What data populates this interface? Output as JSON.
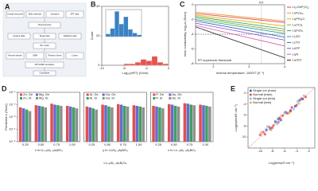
{
  "diagram": {
    "label": "A",
    "nodes": [
      "Crystal structures",
      "Bulk materials",
      "Literature",
      "DFT data",
      "Preprocessing",
      "Feature table",
      "Target data",
      "Validation data",
      "ML model",
      "Neural network",
      "GBM",
      "Random forest",
      "Linear",
      "DFT/AIMD simulation",
      "Candidates"
    ]
  },
  "chart_data": [
    {
      "type": "histogram",
      "label": "B",
      "xlabel": "Log₁₀(σRT) (S/cm)",
      "ylabel": "Count",
      "bins": [
        -12,
        -11,
        -10,
        -9,
        -8,
        -7,
        -6,
        -5,
        -4,
        -3,
        -2,
        -1,
        0
      ],
      "counts": [
        0,
        0,
        0,
        0,
        1,
        1,
        2,
        4,
        3,
        6,
        2,
        1
      ],
      "color": "#e8534f",
      "xlim": [
        -12,
        0
      ],
      "ylim": [
        0,
        40
      ],
      "xticks": [
        -12,
        -8,
        -4,
        0
      ],
      "yticks": [
        0,
        20,
        40
      ],
      "inset": {
        "bins": [
          -10,
          -9,
          -8,
          -7,
          -6,
          -5,
          -4,
          -3,
          -2
        ],
        "counts": [
          3,
          9,
          28,
          14,
          22,
          8,
          4,
          2
        ],
        "color": "#3b82c4",
        "xlim": [
          -10,
          -2
        ],
        "ylim": [
          0,
          30
        ]
      }
    },
    {
      "type": "line",
      "label": "C",
      "xlabel": "Inverse temperature, 1000/T (K⁻¹)",
      "ylabel": "Ionic conductivity, log₁₀σ (S/cm)",
      "x": [
        1.5,
        4
      ],
      "xlim": [
        1.5,
        4
      ],
      "ylim": [
        -8,
        0
      ],
      "xticks": [
        2,
        3,
        4
      ],
      "yticks": [
        -8,
        -6,
        -4,
        -2,
        0
      ],
      "hline": {
        "value": -4,
        "label": "RT superionic threshold"
      },
      "vline": {
        "value": 3.35,
        "label": "RT"
      },
      "series": [
        {
          "name": "Li₁₀GeP₂S₁₂",
          "color": "#e03c3c",
          "values": [
            -1.2,
            -2.4
          ]
        },
        {
          "name": "Li₇P₃S₁₁",
          "color": "#f08c2a",
          "values": [
            -1.0,
            -2.2
          ]
        },
        {
          "name": "Li₆PS₅Cl",
          "color": "#d6b400",
          "values": [
            -1.4,
            -2.9
          ]
        },
        {
          "name": "Li₃YCl₆",
          "color": "#8aa82a",
          "values": [
            -1.8,
            -3.6
          ]
        },
        {
          "name": "Li₃InCl₆",
          "color": "#2f9e4f",
          "values": [
            -1.6,
            -3.3
          ]
        },
        {
          "name": "LLZO",
          "color": "#1f9c9c",
          "values": [
            -2.0,
            -3.9
          ]
        },
        {
          "name": "LLTO",
          "color": "#3361c2",
          "values": [
            -2.2,
            -4.4
          ]
        },
        {
          "name": "LATP",
          "color": "#8250c4",
          "values": [
            -2.5,
            -4.8
          ]
        },
        {
          "name": "Li₃N",
          "color": "#d45aa0",
          "values": [
            -2.8,
            -5.6
          ]
        },
        {
          "name": "Li₃OCl",
          "color": "#222222",
          "values": [
            -3.0,
            -7.2
          ]
        }
      ]
    },
    {
      "type": "bar",
      "label": "D",
      "ylabel": "Predicted σ (S/cm)",
      "xlabel": "Li₇₊ₓAl₁₋ₓAₓBₓO₄",
      "log_scale": true,
      "ylim": [
        1e-05,
        0.1
      ],
      "yticks": [
        {
          "value": 1e-05,
          "label": "10⁻⁵"
        },
        {
          "value": 0.0001,
          "label": "10⁻⁴"
        },
        {
          "value": 0.001,
          "label": "10⁻³"
        },
        {
          "value": 0.01,
          "label": "10⁻²"
        },
        {
          "value": 0.1,
          "label": "10⁻¹"
        }
      ],
      "panels": [
        {
          "xlabel": "x in Li₇₊ₓAl₁₋ₓAₓBO₄",
          "categories": [
            "0.25",
            "0.50",
            "0.75",
            "1.00"
          ],
          "series": [
            {
              "name": "Zn, Ge",
              "color": "#e05050",
              "values": [
                0.006,
                0.009,
                0.012,
                0.008
              ]
            },
            {
              "name": "Mg, Ge",
              "color": "#6a6ad0",
              "values": [
                0.005,
                0.008,
                0.01,
                0.007
              ]
            },
            {
              "name": "Zn, Si",
              "color": "#40a060",
              "values": [
                0.004,
                0.007,
                0.009,
                0.006
              ]
            },
            {
              "name": "Mg, Si",
              "color": "#909090",
              "values": [
                0.003,
                0.006,
                0.008,
                0.005
              ]
            }
          ]
        },
        {
          "xlabel": "y in Li₇Al₁₋ᵧAᵧBO₄",
          "categories": [
            "0.25",
            "0.50",
            "0.75",
            "1.00"
          ],
          "series": [
            {
              "name": "Al, Ge",
              "color": "#e05050",
              "values": [
                0.007,
                0.01,
                0.011,
                0.009
              ]
            },
            {
              "name": "Ga, Ge",
              "color": "#6a6ad0",
              "values": [
                0.006,
                0.009,
                0.01,
                0.008
              ]
            },
            {
              "name": "Al, Si",
              "color": "#40a060",
              "values": [
                0.005,
                0.007,
                0.008,
                0.007
              ]
            },
            {
              "name": "Ga, Si",
              "color": "#909090",
              "values": [
                0.004,
                0.006,
                0.007,
                0.006
              ]
            }
          ]
        },
        {
          "xlabel": "x in Li₇₋ₓAl₁₋ₓAₓBO₄",
          "categories": [
            "0.25",
            "0.50",
            "0.75",
            "1.00"
          ],
          "series": [
            {
              "name": "P, Ge",
              "color": "#e05050",
              "values": [
                0.008,
                0.011,
                0.013,
                0.01
              ]
            },
            {
              "name": "As, Ge",
              "color": "#6a6ad0",
              "values": [
                0.007,
                0.01,
                0.012,
                0.009
              ]
            },
            {
              "name": "P, Si",
              "color": "#40a060",
              "values": [
                0.006,
                0.008,
                0.01,
                0.008
              ]
            },
            {
              "name": "As, Si",
              "color": "#909090",
              "values": [
                0.005,
                0.007,
                0.009,
                0.007
              ]
            }
          ]
        }
      ]
    },
    {
      "type": "scatter",
      "label": "E",
      "xlabel": "Log(σexp/S·cm⁻¹)",
      "ylabel": "Log(σpred/S·cm⁻¹)",
      "diagonal": true,
      "xlim": [
        -12,
        -1
      ],
      "ylim": [
        -12,
        -1
      ],
      "xticks": [
        -10,
        -8,
        -6,
        -4,
        -2
      ],
      "yticks": [
        -10,
        -8,
        -6,
        -4,
        -2
      ],
      "series": [
        {
          "name": "Single-ion (train)",
          "color": "#2f5fc4",
          "marker": "square",
          "x": [
            -9,
            -8.3,
            -7.5,
            -6.6,
            -5.8,
            -5,
            -4.2,
            -3.5,
            -3,
            -7
          ],
          "values": [
            -8.7,
            -8.5,
            -7.2,
            -6.9,
            -5.5,
            -5.2,
            -4.4,
            -3.3,
            -3.1,
            -6.7
          ]
        },
        {
          "name": "Normal (train)",
          "color": "#e04040",
          "marker": "circle",
          "x": [
            -10,
            -9.2,
            -8.5,
            -7.8,
            -7,
            -6.3,
            -5.5,
            -4.8,
            -4,
            -3.2,
            -2.5,
            -9.5,
            -8,
            -6.8,
            -5
          ],
          "values": [
            -9.6,
            -9.5,
            -8.2,
            -7.9,
            -7.3,
            -6.1,
            -5.7,
            -4.6,
            -4.2,
            -3.0,
            -2.7,
            -9.1,
            -8.3,
            -6.5,
            -5.3
          ]
        },
        {
          "name": "Single-ion (test)",
          "color": "#8fb4ec",
          "marker": "square",
          "x": [
            -8.8,
            -7.2,
            -6,
            -4.5,
            -3.8
          ],
          "values": [
            -8.1,
            -7.6,
            -5.6,
            -4.9,
            -3.5
          ]
        },
        {
          "name": "Normal (test)",
          "color": "#f0a050",
          "marker": "circle",
          "x": [
            -9.8,
            -8.2,
            -6.5,
            -5.2,
            -3.6,
            -2.8
          ],
          "values": [
            -9.2,
            -8.7,
            -6.1,
            -5.6,
            -3.9,
            -2.5
          ]
        }
      ]
    }
  ]
}
